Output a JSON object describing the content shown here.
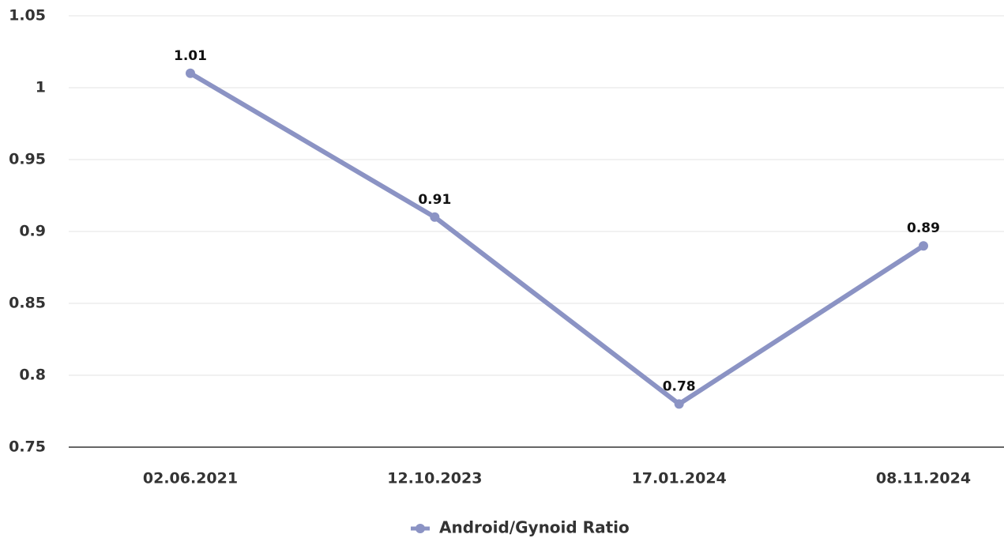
{
  "chart_data": {
    "type": "line",
    "categories": [
      "02.06.2021",
      "12.10.2023",
      "17.01.2024",
      "08.11.2024"
    ],
    "series": [
      {
        "name": "Android/Gynoid Ratio",
        "color": "#8b93c4",
        "values": [
          1.01,
          0.91,
          0.78,
          0.89
        ]
      }
    ],
    "ylim": [
      0.75,
      1.05
    ],
    "yticks": [
      0.75,
      0.8,
      0.85,
      0.9,
      0.95,
      1,
      1.05
    ],
    "grid": true,
    "legend": "bottom"
  }
}
